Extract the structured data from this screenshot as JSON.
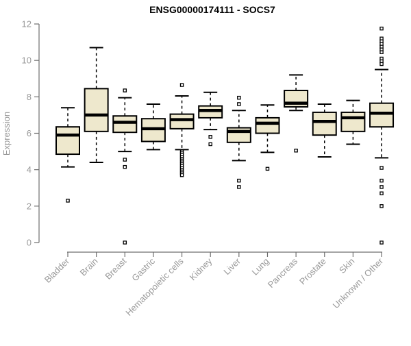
{
  "title": "ENSG00000174111 - SOCS7",
  "colors": {
    "background": "#FFFFFF",
    "box_fill": "#EEE8CD",
    "box_stroke": "#000000",
    "median": "#000000",
    "whisker": "#000000",
    "outlier_stroke": "#000000",
    "outlier_fill": "#FFFFFF",
    "axis_line": "#6E6E6E",
    "axis_label": "#999999",
    "title_color": "#000000"
  },
  "chart_data": {
    "type": "boxplot",
    "title": "ENSG00000174111 - SOCS7",
    "xlabel": "",
    "ylabel": "Expression",
    "ylim": [
      0,
      12
    ],
    "yticks": [
      0,
      2,
      4,
      6,
      8,
      10,
      12
    ],
    "grid": false,
    "legend": "none",
    "categories": [
      "Bladder",
      "Brain",
      "Breast",
      "Gastric",
      "Hematopoietic cells",
      "Kidney",
      "Liver",
      "Lung",
      "Pancreas",
      "Prostate",
      "Skin",
      "Unknown / Other"
    ],
    "series": [
      {
        "name": "Bladder",
        "whisker_low": 4.15,
        "q1": 4.85,
        "median": 5.9,
        "q3": 6.35,
        "whisker_high": 7.4,
        "outliers": [
          2.3
        ]
      },
      {
        "name": "Brain",
        "whisker_low": 4.4,
        "q1": 6.1,
        "median": 7.0,
        "q3": 8.45,
        "whisker_high": 10.7,
        "outliers": []
      },
      {
        "name": "Breast",
        "whisker_low": 5.0,
        "q1": 6.05,
        "median": 6.6,
        "q3": 6.95,
        "whisker_high": 7.95,
        "outliers": [
          8.35,
          4.55,
          4.15,
          0.0
        ]
      },
      {
        "name": "Gastric",
        "whisker_low": 5.1,
        "q1": 5.55,
        "median": 6.25,
        "q3": 6.8,
        "whisker_high": 7.6,
        "outliers": []
      },
      {
        "name": "Hematopoietic cells",
        "whisker_low": 5.1,
        "q1": 6.25,
        "median": 6.75,
        "q3": 7.05,
        "whisker_high": 8.05,
        "outliers": [
          8.65,
          5.0,
          4.9,
          4.8,
          4.7,
          4.6,
          4.5,
          4.4,
          4.3,
          4.2,
          4.1,
          4.0,
          3.9,
          3.8,
          3.7
        ]
      },
      {
        "name": "Kidney",
        "whisker_low": 6.2,
        "q1": 6.85,
        "median": 7.25,
        "q3": 7.5,
        "whisker_high": 8.25,
        "outliers": [
          5.8,
          5.4
        ]
      },
      {
        "name": "Liver",
        "whisker_low": 4.5,
        "q1": 5.5,
        "median": 6.1,
        "q3": 6.3,
        "whisker_high": 7.25,
        "outliers": [
          7.95,
          7.6,
          3.4,
          3.05
        ]
      },
      {
        "name": "Lung",
        "whisker_low": 4.95,
        "q1": 6.0,
        "median": 6.55,
        "q3": 6.85,
        "whisker_high": 7.55,
        "outliers": [
          4.05
        ]
      },
      {
        "name": "Pancreas",
        "whisker_low": 7.25,
        "q1": 7.45,
        "median": 7.65,
        "q3": 8.35,
        "whisker_high": 9.2,
        "outliers": [
          5.05
        ]
      },
      {
        "name": "Prostate",
        "whisker_low": 4.7,
        "q1": 5.9,
        "median": 6.65,
        "q3": 7.15,
        "whisker_high": 7.6,
        "outliers": []
      },
      {
        "name": "Skin",
        "whisker_low": 5.4,
        "q1": 6.1,
        "median": 6.85,
        "q3": 7.15,
        "whisker_high": 7.8,
        "outliers": []
      },
      {
        "name": "Unknown / Other",
        "whisker_low": 4.65,
        "q1": 6.35,
        "median": 7.1,
        "q3": 7.65,
        "whisker_high": 9.5,
        "outliers": [
          11.75,
          11.2,
          11.05,
          10.9,
          10.75,
          10.6,
          10.45,
          10.1,
          9.95,
          9.8,
          4.1,
          3.4,
          3.05,
          2.7,
          2.0,
          0.0
        ]
      }
    ]
  }
}
